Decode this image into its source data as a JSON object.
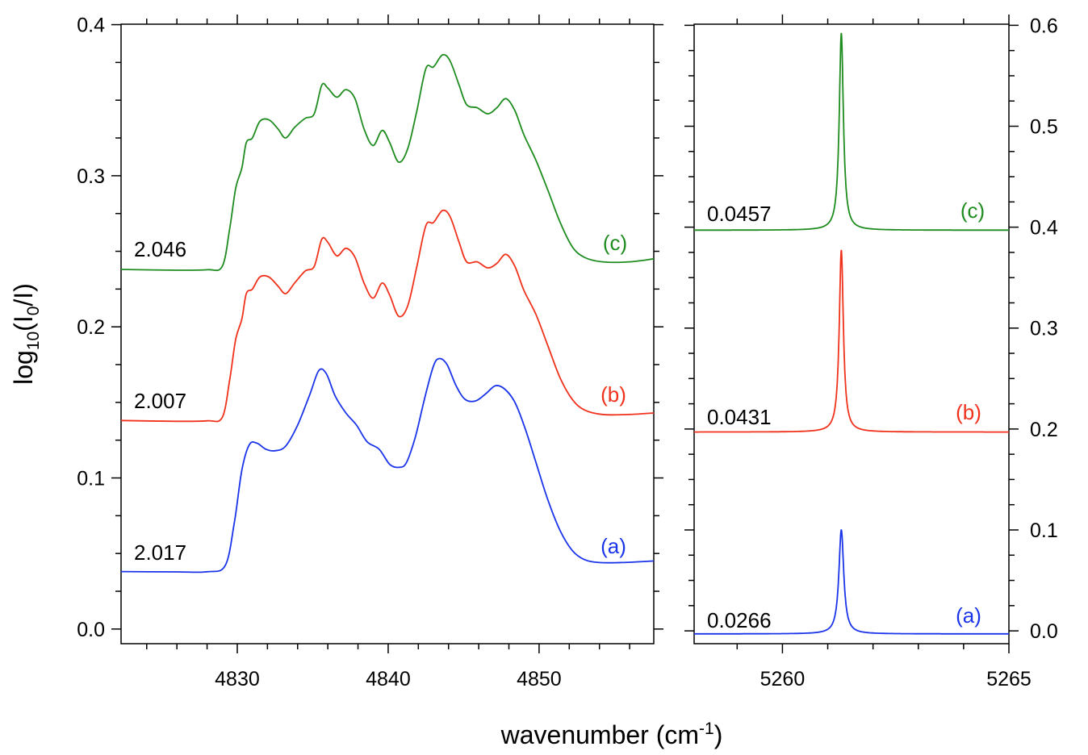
{
  "chart_data": [
    {
      "panel": "left",
      "type": "line",
      "xlabel": "wavenumber (cm-1)",
      "ylabel": "log10(I0/I)",
      "xlim": [
        4822.3,
        4857.6
      ],
      "ylim": [
        -0.0097,
        0.4003
      ],
      "x_ticks": [
        4830,
        4840,
        4850
      ],
      "x_tick_labels": [
        "4830",
        "4840",
        "4850"
      ],
      "y_ticks": [
        0.0,
        0.1,
        0.2,
        0.3,
        0.4
      ],
      "y_tick_labels": [
        "0.0",
        "0.1",
        "0.2",
        "0.3",
        "0.4"
      ],
      "series": [
        {
          "name": "(a)",
          "value_label": "2.017",
          "color": "#1a34ea",
          "points": [
            [
              4822.3,
              0.038
            ],
            [
              4826,
              0.0378
            ],
            [
              4828,
              0.0379
            ],
            [
              4829.2,
              0.042
            ],
            [
              4829.8,
              0.07
            ],
            [
              4830.3,
              0.105
            ],
            [
              4830.8,
              0.122
            ],
            [
              4831.3,
              0.123
            ],
            [
              4831.9,
              0.119
            ],
            [
              4832.5,
              0.118
            ],
            [
              4833.2,
              0.121
            ],
            [
              4834.0,
              0.135
            ],
            [
              4834.8,
              0.155
            ],
            [
              4835.4,
              0.171
            ],
            [
              4835.9,
              0.169
            ],
            [
              4836.5,
              0.154
            ],
            [
              4837.2,
              0.143
            ],
            [
              4837.9,
              0.135
            ],
            [
              4838.6,
              0.124
            ],
            [
              4839.4,
              0.119
            ],
            [
              4840.1,
              0.109
            ],
            [
              4840.7,
              0.107
            ],
            [
              4841.2,
              0.11
            ],
            [
              4841.8,
              0.127
            ],
            [
              4842.4,
              0.152
            ],
            [
              4843.0,
              0.174
            ],
            [
              4843.4,
              0.179
            ],
            [
              4843.9,
              0.175
            ],
            [
              4844.5,
              0.161
            ],
            [
              4845.1,
              0.152
            ],
            [
              4845.8,
              0.151
            ],
            [
              4846.5,
              0.156
            ],
            [
              4847.1,
              0.161
            ],
            [
              4847.7,
              0.159
            ],
            [
              4848.4,
              0.15
            ],
            [
              4849.1,
              0.132
            ],
            [
              4849.8,
              0.11
            ],
            [
              4850.6,
              0.085
            ],
            [
              4851.4,
              0.065
            ],
            [
              4852.2,
              0.052
            ],
            [
              4853.0,
              0.046
            ],
            [
              4854.0,
              0.044
            ],
            [
              4855.5,
              0.044
            ],
            [
              4857.6,
              0.045
            ]
          ]
        },
        {
          "name": "(b)",
          "value_label": "2.007",
          "color": "#f0321c",
          "points": [
            [
              4822.3,
              0.138
            ],
            [
              4826,
              0.1375
            ],
            [
              4828,
              0.1378
            ],
            [
              4829.0,
              0.14
            ],
            [
              4829.5,
              0.165
            ],
            [
              4829.9,
              0.192
            ],
            [
              4830.3,
              0.205
            ],
            [
              4830.6,
              0.222
            ],
            [
              4831.0,
              0.225
            ],
            [
              4831.5,
              0.233
            ],
            [
              4832.1,
              0.233
            ],
            [
              4832.7,
              0.227
            ],
            [
              4833.2,
              0.222
            ],
            [
              4833.8,
              0.229
            ],
            [
              4834.5,
              0.237
            ],
            [
              4835.1,
              0.24
            ],
            [
              4835.6,
              0.258
            ],
            [
              4836.0,
              0.256
            ],
            [
              4836.6,
              0.247
            ],
            [
              4837.2,
              0.252
            ],
            [
              4837.8,
              0.246
            ],
            [
              4838.4,
              0.229
            ],
            [
              4839.0,
              0.219
            ],
            [
              4839.6,
              0.229
            ],
            [
              4840.1,
              0.221
            ],
            [
              4840.7,
              0.207
            ],
            [
              4841.3,
              0.214
            ],
            [
              4841.9,
              0.24
            ],
            [
              4842.5,
              0.267
            ],
            [
              4843.0,
              0.269
            ],
            [
              4843.6,
              0.277
            ],
            [
              4844.1,
              0.273
            ],
            [
              4844.7,
              0.256
            ],
            [
              4845.2,
              0.243
            ],
            [
              4845.9,
              0.243
            ],
            [
              4846.6,
              0.239
            ],
            [
              4847.2,
              0.242
            ],
            [
              4847.8,
              0.248
            ],
            [
              4848.4,
              0.24
            ],
            [
              4849.0,
              0.224
            ],
            [
              4849.8,
              0.208
            ],
            [
              4850.6,
              0.187
            ],
            [
              4851.4,
              0.166
            ],
            [
              4852.2,
              0.152
            ],
            [
              4853.0,
              0.145
            ],
            [
              4854.2,
              0.142
            ],
            [
              4856.0,
              0.142
            ],
            [
              4857.6,
              0.143
            ]
          ]
        },
        {
          "name": "(c)",
          "value_label": "2.046",
          "color": "#1f8c1f",
          "points": [
            [
              4822.3,
              0.238
            ],
            [
              4826,
              0.2375
            ],
            [
              4828,
              0.2378
            ],
            [
              4829.0,
              0.24
            ],
            [
              4829.5,
              0.265
            ],
            [
              4829.9,
              0.292
            ],
            [
              4830.3,
              0.305
            ],
            [
              4830.6,
              0.322
            ],
            [
              4831.0,
              0.325
            ],
            [
              4831.5,
              0.336
            ],
            [
              4832.1,
              0.337
            ],
            [
              4832.7,
              0.331
            ],
            [
              4833.2,
              0.325
            ],
            [
              4833.8,
              0.332
            ],
            [
              4834.5,
              0.338
            ],
            [
              4835.1,
              0.341
            ],
            [
              4835.6,
              0.36
            ],
            [
              4836.0,
              0.358
            ],
            [
              4836.6,
              0.352
            ],
            [
              4837.2,
              0.357
            ],
            [
              4837.8,
              0.351
            ],
            [
              4838.4,
              0.331
            ],
            [
              4839.0,
              0.32
            ],
            [
              4839.6,
              0.33
            ],
            [
              4840.1,
              0.322
            ],
            [
              4840.7,
              0.309
            ],
            [
              4841.3,
              0.318
            ],
            [
              4841.9,
              0.343
            ],
            [
              4842.5,
              0.371
            ],
            [
              4843.0,
              0.372
            ],
            [
              4843.6,
              0.38
            ],
            [
              4844.1,
              0.376
            ],
            [
              4844.7,
              0.36
            ],
            [
              4845.2,
              0.347
            ],
            [
              4845.9,
              0.345
            ],
            [
              4846.6,
              0.341
            ],
            [
              4847.2,
              0.345
            ],
            [
              4847.8,
              0.351
            ],
            [
              4848.4,
              0.343
            ],
            [
              4849.0,
              0.327
            ],
            [
              4849.8,
              0.31
            ],
            [
              4850.6,
              0.29
            ],
            [
              4851.4,
              0.269
            ],
            [
              4852.2,
              0.253
            ],
            [
              4853.0,
              0.246
            ],
            [
              4854.2,
              0.243
            ],
            [
              4856.0,
              0.243
            ],
            [
              4857.6,
              0.245
            ]
          ]
        }
      ]
    },
    {
      "panel": "right",
      "type": "line",
      "xlabel": "wavenumber (cm-1)",
      "ylabel": "",
      "xlim": [
        5258.05,
        5265.0
      ],
      "ylim": [
        -0.0127,
        0.6011
      ],
      "x_ticks": [
        5260,
        5265
      ],
      "x_tick_labels": [
        "5260",
        "5265"
      ],
      "y_ticks": [
        0.0,
        0.1,
        0.2,
        0.3,
        0.4,
        0.5,
        0.6
      ],
      "y_tick_labels": [
        "0.0",
        "0.1",
        "0.2",
        "0.3",
        "0.4",
        "0.5",
        "0.6"
      ],
      "series": [
        {
          "name": "(a)",
          "value_label": "0.0266",
          "color": "#1a34ea",
          "baseline": -0.003,
          "peak_center": 5261.3,
          "peak_height": 0.103,
          "peak_halfwidth": 0.065
        },
        {
          "name": "(b)",
          "value_label": "0.0431",
          "color": "#f0321c",
          "baseline": 0.197,
          "peak_center": 5261.3,
          "peak_height": 0.18,
          "peak_halfwidth": 0.055
        },
        {
          "name": "(c)",
          "value_label": "0.0457",
          "color": "#1f8c1f",
          "baseline": 0.397,
          "peak_center": 5261.3,
          "peak_height": 0.195,
          "peak_halfwidth": 0.055
        }
      ]
    }
  ],
  "axis_title_x_main": "wavenumber (cm",
  "axis_title_x_sup": "-1",
  "axis_title_x_end": ")",
  "axis_title_y_main": "log",
  "axis_title_y_sub1": "10",
  "axis_title_y_mid": "(I",
  "axis_title_y_sub2": "0",
  "axis_title_y_end": "/I)"
}
